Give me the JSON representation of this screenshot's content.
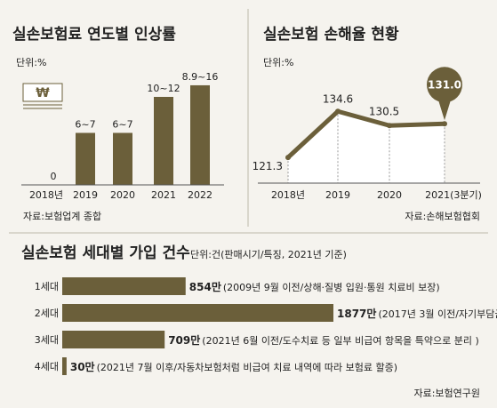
{
  "chart_data": [
    {
      "type": "bar",
      "title": "실손보험료 연도별 인상률",
      "unit_label": "단위:%",
      "categories": [
        "2018년",
        "2019",
        "2020",
        "2021",
        "2022"
      ],
      "value_labels": [
        "0",
        "6~7",
        "6~7",
        "10~12",
        "8.9~16"
      ],
      "values": [
        0,
        6.5,
        6.5,
        11,
        12.45
      ],
      "ylim": [
        0,
        14
      ],
      "bar_color": "#6b5f3a",
      "source": "자료:보험업계 종합",
      "icon": "won-currency-icon"
    },
    {
      "type": "area",
      "title": "실손보험 손해율 현황",
      "unit_label": "단위:%",
      "categories": [
        "2018년",
        "2019",
        "2020",
        "2021(3분기)"
      ],
      "values": [
        121.3,
        134.6,
        130.5,
        131.0
      ],
      "value_labels": [
        "121.3",
        "134.6",
        "130.5",
        "131.0"
      ],
      "ylim": [
        118,
        138
      ],
      "line_color": "#6b5f3a",
      "highlight_color": "#6b5f3a",
      "source": "자료:손해보험협회"
    },
    {
      "type": "bar",
      "orientation": "horizontal",
      "title": "실손보험 세대별 가입 건수",
      "unit_label": "단위:건(판매시기/특징, 2021년 기준)",
      "categories": [
        "1세대",
        "2세대",
        "3세대",
        "4세대"
      ],
      "values": [
        854,
        1877,
        709,
        30
      ],
      "value_labels": [
        "854만",
        "1877만",
        "709만",
        "30만"
      ],
      "notes": [
        "(2009년 9월 이전/상해·질병 입원·통원 치료비 보장)",
        "(2017년 3월 이전/자기부담금 도입 )",
        "(2021년 6월 이전/도수치료 등 일부 비급여 항목을 특약으로 분리 )",
        "(2021년 7월 이후/자동차보험처럼 비급여 치료 내역에 따라 보험료 할증)"
      ],
      "xlim": [
        0,
        1877
      ],
      "bar_color": "#6b5f3a",
      "source": "자료:보험연구원"
    }
  ]
}
